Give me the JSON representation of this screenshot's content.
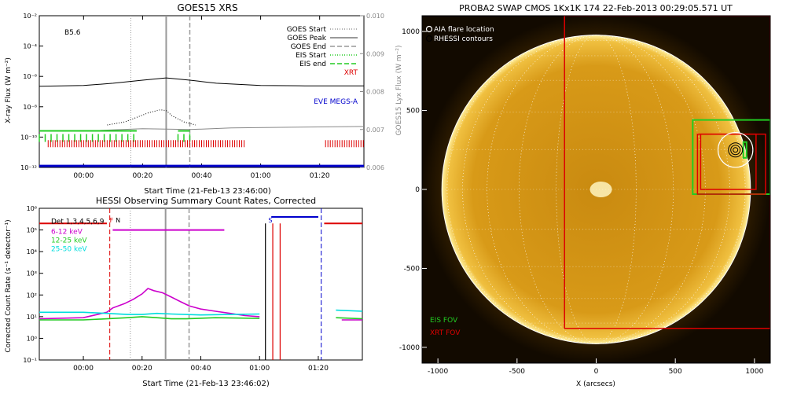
{
  "chart_data": [
    {
      "panel": "goes",
      "type": "line",
      "title": "GOES15 XRS",
      "xlabel": "Start Time (21-Feb-13 23:46:00)",
      "ylabel": "X-ray Flux (W m⁻²)",
      "ylabel_right": "GOES15 Lyx Flux (W m⁻²)",
      "annotation": "B5.6",
      "x_range_minutes": [
        -15,
        95
      ],
      "x_ticks": [
        {
          "m": 0,
          "label": "00:00"
        },
        {
          "m": 20,
          "label": "00:20"
        },
        {
          "m": 40,
          "label": "00:40"
        },
        {
          "m": 60,
          "label": "01:00"
        },
        {
          "m": 80,
          "label": "01:20"
        }
      ],
      "ylim_log": [
        -12,
        -2
      ],
      "y_ticks": [
        {
          "exp": -12,
          "label": "10⁻¹²"
        },
        {
          "exp": -10,
          "label": "10⁻¹⁰"
        },
        {
          "exp": -8,
          "label": "10⁻⁸"
        },
        {
          "exp": -6,
          "label": "10⁻⁶"
        },
        {
          "exp": -4,
          "label": "10⁻⁴"
        },
        {
          "exp": -2,
          "label": "10⁻²"
        }
      ],
      "ylim_right": [
        0.006,
        0.01
      ],
      "y_ticks_right": [
        "0.006",
        "0.007",
        "0.008",
        "0.009",
        "0.010"
      ],
      "legend": [
        {
          "label": "GOES Start",
          "color": "#999999",
          "style": "dotted"
        },
        {
          "label": "GOES Peak",
          "color": "#999999",
          "style": "solid"
        },
        {
          "label": "GOES End",
          "color": "#999999",
          "style": "dashed"
        },
        {
          "label": "EIS Start",
          "color": "#22cc22",
          "style": "dotted"
        },
        {
          "label": "EIS end",
          "color": "#22cc22",
          "style": "dashed"
        },
        {
          "label": "XRT",
          "color": "#dd0000",
          "style": "text"
        },
        {
          "label": "EVE MEGS-A",
          "color": "#0000cc",
          "style": "text"
        }
      ],
      "markers": {
        "goes_start": 16,
        "goes_peak": 28,
        "goes_end": 36
      },
      "series": [
        {
          "name": "long",
          "color": "#000000",
          "x": [
            -15,
            0,
            10,
            20,
            28,
            36,
            45,
            60,
            75,
            95
          ],
          "log_y": [
            -6.65,
            -6.6,
            -6.45,
            -6.25,
            -6.1,
            -6.25,
            -6.45,
            -6.6,
            -6.62,
            -6.62
          ]
        },
        {
          "name": "short",
          "color": "#000000",
          "x": [
            8,
            14,
            18,
            22,
            26,
            28,
            30,
            34,
            38
          ],
          "log_y": [
            -9.2,
            -9.0,
            -8.7,
            -8.4,
            -8.2,
            -8.25,
            -8.6,
            -9.0,
            -9.2
          ]
        },
        {
          "name": "lyman",
          "color": "#888888",
          "x": [
            -15,
            0,
            20,
            36,
            50,
            70,
            95
          ],
          "log_y": [
            -9.6,
            -9.6,
            -9.45,
            -9.5,
            -9.4,
            -9.35,
            -9.3
          ]
        },
        {
          "name": "EVE MEGS-A",
          "color": "#0000cc",
          "x": [
            -15,
            95
          ],
          "log_y": [
            -11.9,
            -11.9
          ]
        }
      ],
      "eis_bars": {
        "ranges": [
          [
            -15,
            18
          ],
          [
            32,
            36
          ]
        ],
        "log_y": -9.8
      },
      "xrt_bars": {
        "ranges": [
          [
            -12,
            55
          ],
          [
            82,
            95
          ]
        ],
        "log_y": -10.2
      }
    },
    {
      "panel": "hessi",
      "type": "line",
      "title": "HESSI Observing Summary Count Rates, Corrected",
      "xlabel": "Start Time (21-Feb-13 23:46:02)",
      "ylabel": "Corrected Count Rate (s⁻¹ detector⁻¹)",
      "x_range_minutes": [
        -15,
        95
      ],
      "x_ticks": [
        {
          "m": 0,
          "label": "00:00"
        },
        {
          "m": 20,
          "label": "00:20"
        },
        {
          "m": 40,
          "label": "00:40"
        },
        {
          "m": 60,
          "label": "01:00"
        },
        {
          "m": 80,
          "label": "01:20"
        }
      ],
      "ylim_log": [
        -1,
        6
      ],
      "y_ticks": [
        {
          "exp": -1,
          "label": "10⁻¹"
        },
        {
          "exp": 0,
          "label": "10⁰"
        },
        {
          "exp": 1,
          "label": "10¹"
        },
        {
          "exp": 2,
          "label": "10²"
        },
        {
          "exp": 3,
          "label": "10³"
        },
        {
          "exp": 4,
          "label": "10⁴"
        },
        {
          "exp": 5,
          "label": "10⁵"
        },
        {
          "exp": 6,
          "label": "10⁶"
        }
      ],
      "legend": [
        {
          "label": "Det 1,3,4,5,6,9",
          "color": "#000000"
        },
        {
          "label": "6-12 keV",
          "color": "#cc00cc"
        },
        {
          "label": "12-25 keV",
          "color": "#22cc22"
        },
        {
          "label": "25-50 keV",
          "color": "#00dddd"
        }
      ],
      "flag_labels": [
        {
          "text": "F",
          "m": 9,
          "color": "#dd0000"
        },
        {
          "text": "N",
          "m": 11,
          "color": "#000000"
        },
        {
          "text": "S",
          "m": 63,
          "color": "#0000cc"
        }
      ],
      "markers": {
        "goes_start": 16,
        "goes_peak": 28,
        "goes_end": 36,
        "red_dash": 9,
        "blue_dash": 81
      },
      "series": [
        {
          "name": "6-12 keV",
          "color": "#cc00cc",
          "x": [
            -15,
            0,
            8,
            10,
            14,
            17,
            20,
            22,
            24,
            27,
            30,
            33,
            36,
            40,
            45,
            50,
            55,
            60
          ],
          "log_y": [
            0.9,
            0.95,
            1.2,
            1.4,
            1.6,
            1.8,
            2.05,
            2.3,
            2.2,
            2.1,
            1.9,
            1.7,
            1.5,
            1.35,
            1.25,
            1.15,
            1.05,
            1.0
          ]
        },
        {
          "name": "12-25 keV",
          "color": "#22cc22",
          "x": [
            -15,
            0,
            8,
            15,
            20,
            25,
            30,
            35,
            45,
            60
          ],
          "log_y": [
            0.85,
            0.85,
            0.9,
            0.95,
            1.0,
            0.95,
            0.9,
            0.9,
            0.95,
            0.92
          ]
        },
        {
          "name": "25-50 keV",
          "color": "#00dddd",
          "x": [
            -15,
            0,
            8,
            15,
            20,
            25,
            30,
            40,
            50,
            60
          ],
          "log_y": [
            1.2,
            1.2,
            1.15,
            1.1,
            1.1,
            1.15,
            1.12,
            1.08,
            1.1,
            1.12
          ]
        },
        {
          "name": "25-50 keV (late)",
          "color": "#00dddd",
          "x": [
            86,
            95
          ],
          "log_y": [
            1.3,
            1.25
          ]
        },
        {
          "name": "12-25 keV (late)",
          "color": "#22cc22",
          "x": [
            86,
            95
          ],
          "log_y": [
            0.95,
            0.9
          ]
        },
        {
          "name": "6-12 keV (late)",
          "color": "#cc00cc",
          "x": [
            88,
            95
          ],
          "log_y": [
            0.85,
            0.85
          ]
        }
      ],
      "flag_bars": [
        {
          "color": "#dd0000",
          "x": [
            -15,
            8
          ],
          "log_y": 5.3
        },
        {
          "color": "#cc00cc",
          "x": [
            10,
            48
          ],
          "log_y": 5.0
        },
        {
          "color": "#0000cc",
          "x": [
            64,
            80
          ],
          "log_y": 5.6
        },
        {
          "color": "#dd0000",
          "x": [
            82,
            95
          ],
          "log_y": 5.3
        }
      ]
    },
    {
      "panel": "swap",
      "type": "image",
      "title": "PROBA2 SWAP CMOS 1Kx1K 174 22-Feb-2013 00:29:05.571 UT",
      "xlabel": "X (arcsecs)",
      "x_range": [
        -1100,
        1100
      ],
      "y_range": [
        -1100,
        1100
      ],
      "x_ticks": [
        -1000,
        -500,
        0,
        500,
        1000
      ],
      "y_ticks": [
        -1000,
        -500,
        0,
        500,
        1000
      ],
      "legend": [
        {
          "label": "AIA flare location",
          "color": "#ffffff"
        },
        {
          "label": "RHESSI contours",
          "color": "#000000"
        }
      ],
      "fov_labels": [
        {
          "label": "EIS FOV",
          "color": "#22cc22"
        },
        {
          "label": "XRT FOV",
          "color": "#dd0000"
        }
      ],
      "solar_radius_arcsec": 975,
      "xrt_fov_big": [
        -200,
        -880,
        1100,
        1100
      ],
      "eis_fov": [
        [
          610,
          -30,
          1100,
          440
        ],
        [
          930,
          200,
          950,
          300
        ]
      ],
      "xrt_fov_small": [
        [
          640,
          -30,
          1070,
          350
        ],
        [
          660,
          0,
          1010,
          350
        ]
      ],
      "flare_location": [
        880,
        250
      ],
      "flare_circle_radius": 110
    }
  ]
}
